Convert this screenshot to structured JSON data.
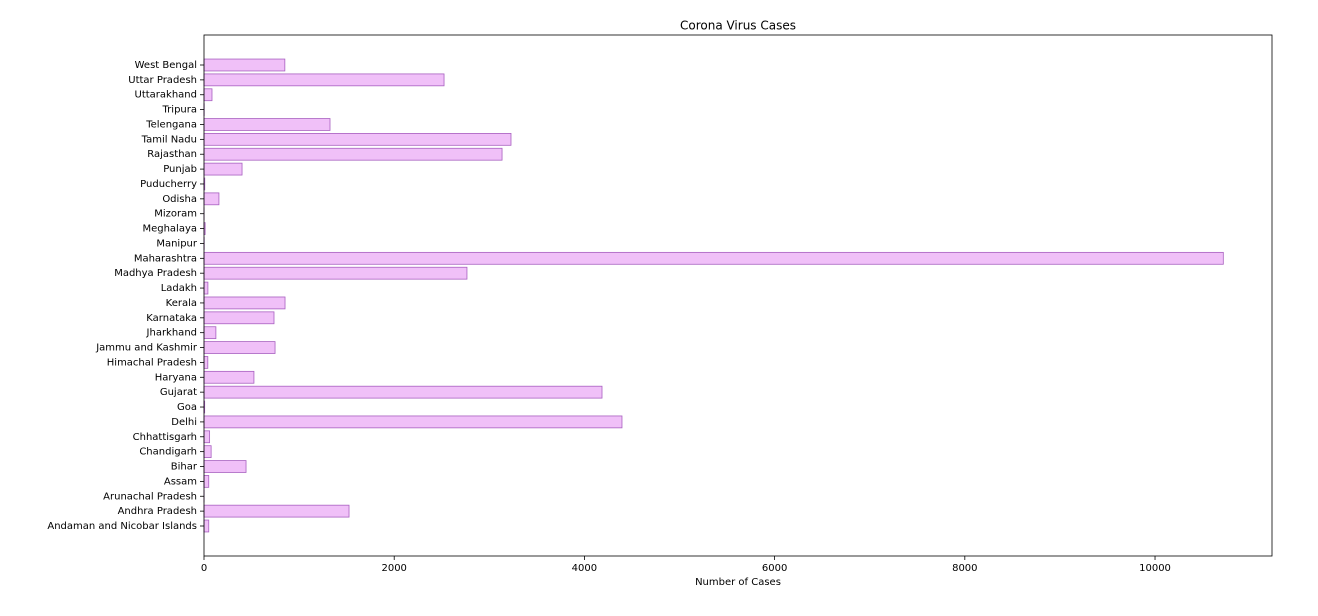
{
  "chart_data": {
    "type": "barh",
    "title": "Corona Virus Cases",
    "x_label": "Number of Cases",
    "categories": [
      "Andaman and Nicobar Islands",
      "Andhra Pradesh",
      "Arunachal Pradesh",
      "Assam",
      "Bihar",
      "Chandigarh",
      "Chhattisgarh",
      "Delhi",
      "Goa",
      "Gujarat",
      "Haryana",
      "Himachal Pradesh",
      "Jammu and Kashmir",
      "Jharkhand",
      "Karnataka",
      "Kerala",
      "Ladakh",
      "Madhya Pradesh",
      "Maharashtra",
      "Manipur",
      "Meghalaya",
      "Mizoram",
      "Odisha",
      "Puducherry",
      "Punjab",
      "Rajasthan",
      "Tamil Nadu",
      "Telengana",
      "Tripura",
      "Uttarakhand",
      "Uttar Pradesh",
      "West Bengal"
    ],
    "values": [
      50,
      1525,
      1,
      50,
      442,
      75,
      59,
      4395,
      7,
      4185,
      525,
      40,
      747,
      125,
      736,
      852,
      41,
      2765,
      10718,
      2,
      12,
      1,
      157,
      8,
      400,
      3134,
      3228,
      1325,
      2,
      84,
      2524,
      850
    ],
    "color": "#f0c0f8",
    "edge_color": "#a860c0",
    "xlim": [
      0,
      11230
    ],
    "xticks": [
      0,
      2000,
      4000,
      6000,
      8000,
      10000
    ]
  }
}
